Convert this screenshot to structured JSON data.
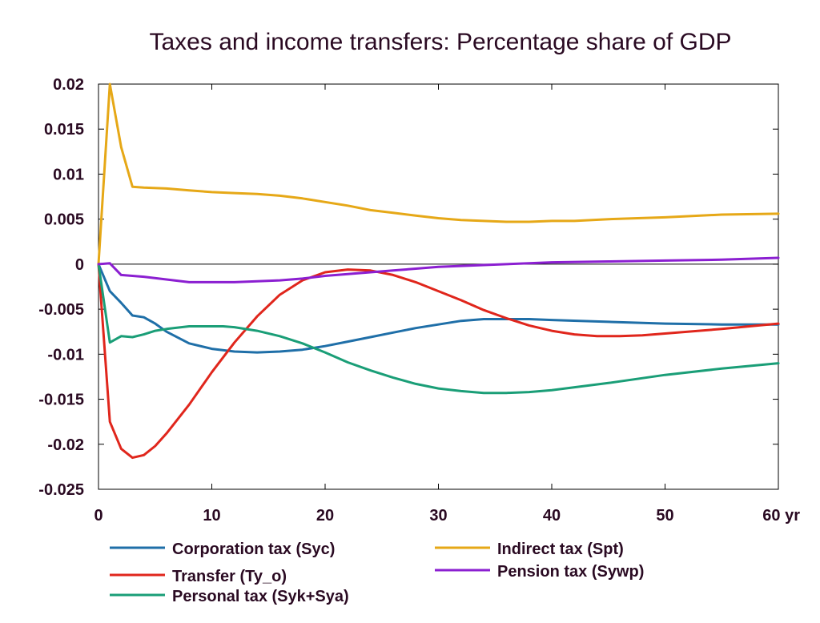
{
  "chart_data": {
    "type": "line",
    "title": "Taxes and income transfers: Percentage share of GDP",
    "xlabel": "yr",
    "ylabel": "",
    "xlim": [
      0,
      60
    ],
    "ylim": [
      -0.025,
      0.02
    ],
    "x_ticks": [
      0,
      10,
      20,
      30,
      40,
      50,
      60
    ],
    "x_tick_labels": [
      "0",
      "10",
      "20",
      "30",
      "40",
      "50",
      "60 yr"
    ],
    "y_ticks": [
      0.02,
      0.015,
      0.01,
      0.005,
      0,
      -0.005,
      -0.01,
      -0.015,
      -0.02,
      -0.025
    ],
    "y_tick_labels": [
      "0.02",
      "0.015",
      "0.01",
      "0.005",
      "0",
      "-0.005",
      "-0.01",
      "-0.015",
      "-0.02",
      "-0.025"
    ],
    "zero_line": true,
    "grid": false,
    "legend_position": "bottom",
    "series": [
      {
        "name": "Corporation tax (Syc)",
        "color": "#1f6fa8",
        "x": [
          0,
          1,
          2,
          3,
          4,
          5,
          6,
          8,
          10,
          12,
          14,
          16,
          18,
          20,
          22,
          24,
          26,
          28,
          30,
          32,
          34,
          36,
          38,
          40,
          45,
          50,
          55,
          60
        ],
        "y": [
          0,
          -0.003,
          -0.0043,
          -0.0057,
          -0.0059,
          -0.0066,
          -0.0075,
          -0.0088,
          -0.0094,
          -0.0097,
          -0.0098,
          -0.0097,
          -0.0095,
          -0.0091,
          -0.0086,
          -0.0081,
          -0.0076,
          -0.0071,
          -0.0067,
          -0.0063,
          -0.0061,
          -0.0061,
          -0.0061,
          -0.0062,
          -0.0064,
          -0.0066,
          -0.0067,
          -0.0067
        ]
      },
      {
        "name": "Transfer (Ty_o)",
        "color": "#e0261c",
        "x": [
          0,
          1,
          2,
          3,
          4,
          5,
          6,
          8,
          10,
          12,
          14,
          16,
          18,
          20,
          22,
          24,
          26,
          28,
          30,
          32,
          34,
          36,
          38,
          40,
          42,
          44,
          46,
          48,
          50,
          55,
          60
        ],
        "y": [
          0,
          -0.0175,
          -0.0205,
          -0.0215,
          -0.0212,
          -0.0202,
          -0.0188,
          -0.0156,
          -0.012,
          -0.0087,
          -0.0058,
          -0.0034,
          -0.0018,
          -0.0009,
          -0.0006,
          -0.0007,
          -0.0012,
          -0.002,
          -0.003,
          -0.004,
          -0.0051,
          -0.006,
          -0.0068,
          -0.0074,
          -0.0078,
          -0.008,
          -0.008,
          -0.0079,
          -0.0077,
          -0.0072,
          -0.0066
        ]
      },
      {
        "name": "Personal tax (Syk+Sya)",
        "color": "#1a9e77",
        "x": [
          0,
          1,
          2,
          3,
          4,
          5,
          6,
          8,
          10,
          11,
          12,
          14,
          16,
          18,
          20,
          22,
          24,
          26,
          28,
          30,
          32,
          34,
          36,
          38,
          40,
          45,
          50,
          55,
          60
        ],
        "y": [
          0,
          -0.0087,
          -0.008,
          -0.0081,
          -0.0078,
          -0.0074,
          -0.0072,
          -0.0069,
          -0.0069,
          -0.0069,
          -0.007,
          -0.0074,
          -0.008,
          -0.0088,
          -0.0098,
          -0.0109,
          -0.0118,
          -0.0126,
          -0.0133,
          -0.0138,
          -0.0141,
          -0.0143,
          -0.0143,
          -0.0142,
          -0.014,
          -0.0132,
          -0.0123,
          -0.0116,
          -0.011
        ]
      },
      {
        "name": "Indirect tax (Spt)",
        "color": "#e6a817",
        "x": [
          0,
          1,
          2,
          3,
          4,
          6,
          8,
          10,
          12,
          14,
          16,
          18,
          20,
          22,
          24,
          26,
          28,
          30,
          32,
          34,
          36,
          38,
          40,
          42,
          45,
          50,
          55,
          60
        ],
        "y": [
          0,
          0.02,
          0.013,
          0.0086,
          0.0085,
          0.0084,
          0.0082,
          0.008,
          0.0079,
          0.0078,
          0.0076,
          0.0073,
          0.0069,
          0.0065,
          0.006,
          0.0057,
          0.0054,
          0.0051,
          0.0049,
          0.0048,
          0.0047,
          0.0047,
          0.0048,
          0.0048,
          0.005,
          0.0052,
          0.0055,
          0.0056
        ]
      },
      {
        "name": "Pension tax (Sywp)",
        "color": "#8b1fd1",
        "x": [
          0,
          1,
          2,
          4,
          6,
          8,
          10,
          12,
          14,
          16,
          18,
          20,
          22,
          24,
          26,
          28,
          30,
          32,
          34,
          36,
          38,
          40,
          45,
          50,
          55,
          60
        ],
        "y": [
          0,
          0.0001,
          -0.0012,
          -0.0014,
          -0.0017,
          -0.002,
          -0.002,
          -0.002,
          -0.0019,
          -0.0018,
          -0.0016,
          -0.0013,
          -0.0011,
          -0.0009,
          -0.0007,
          -0.0005,
          -0.0003,
          -0.0002,
          -0.0001,
          0,
          0.0001,
          0.0002,
          0.0003,
          0.0004,
          0.0005,
          0.0007
        ]
      }
    ]
  }
}
